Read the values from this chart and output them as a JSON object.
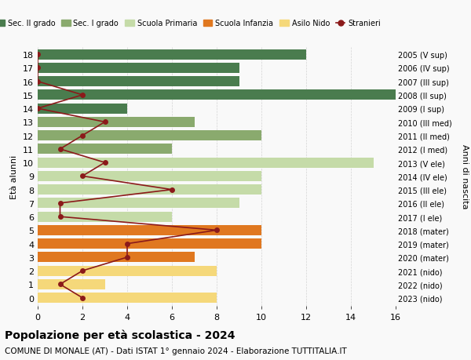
{
  "ages": [
    18,
    17,
    16,
    15,
    14,
    13,
    12,
    11,
    10,
    9,
    8,
    7,
    6,
    5,
    4,
    3,
    2,
    1,
    0
  ],
  "years": [
    "2005 (V sup)",
    "2006 (IV sup)",
    "2007 (III sup)",
    "2008 (II sup)",
    "2009 (I sup)",
    "2010 (III med)",
    "2011 (II med)",
    "2012 (I med)",
    "2013 (V ele)",
    "2014 (IV ele)",
    "2015 (III ele)",
    "2016 (II ele)",
    "2017 (I ele)",
    "2018 (mater)",
    "2019 (mater)",
    "2020 (mater)",
    "2021 (nido)",
    "2022 (nido)",
    "2023 (nido)"
  ],
  "bar_values": [
    12,
    9,
    9,
    16,
    4,
    7,
    10,
    6,
    15,
    10,
    10,
    9,
    6,
    10,
    10,
    7,
    8,
    3,
    8
  ],
  "bar_colors": [
    "#4a7c4e",
    "#4a7c4e",
    "#4a7c4e",
    "#4a7c4e",
    "#4a7c4e",
    "#8aaa6e",
    "#8aaa6e",
    "#8aaa6e",
    "#c5dba8",
    "#c5dba8",
    "#c5dba8",
    "#c5dba8",
    "#c5dba8",
    "#e07820",
    "#e07820",
    "#e07820",
    "#f5d87a",
    "#f5d87a",
    "#f5d87a"
  ],
  "stranieri_values": [
    0,
    0,
    0,
    2,
    0,
    3,
    2,
    1,
    3,
    2,
    6,
    1,
    1,
    8,
    4,
    4,
    2,
    1,
    2
  ],
  "stranieri_color": "#8b1a1a",
  "title": "Popolazione per età scolastica - 2024",
  "subtitle": "COMUNE DI MONALE (AT) - Dati ISTAT 1° gennaio 2024 - Elaborazione TUTTITALIA.IT",
  "ylabel_left": "Età alunni",
  "ylabel_right": "Anni di nascita",
  "xlim": [
    0,
    16
  ],
  "xticks": [
    0,
    2,
    4,
    6,
    8,
    10,
    12,
    14,
    16
  ],
  "legend_labels": [
    "Sec. II grado",
    "Sec. I grado",
    "Scuola Primaria",
    "Scuola Infanzia",
    "Asilo Nido",
    "Stranieri"
  ],
  "legend_colors": [
    "#4a7c4e",
    "#8aaa6e",
    "#c5dba8",
    "#e07820",
    "#f5d87a",
    "#8b1a1a"
  ],
  "bg_color": "#f9f9f9",
  "bar_height": 0.75
}
